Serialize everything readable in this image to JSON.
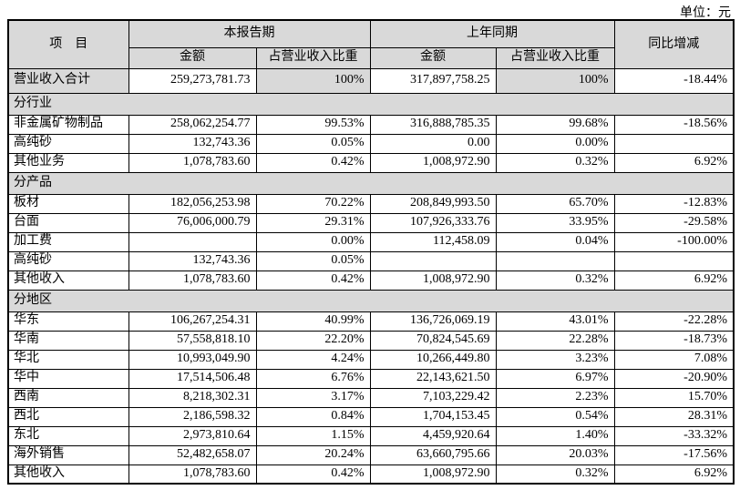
{
  "unit_label": "单位：元",
  "table": {
    "header": {
      "item": "项　目",
      "current_period": "本报告期",
      "prior_period": "上年同期",
      "amount": "金额",
      "pct": "占营业收入比重",
      "yoy": "同比增减"
    },
    "colors": {
      "shaded_cell": "#d9d9d9",
      "border": "#000000",
      "background": "#ffffff"
    },
    "rows": [
      {
        "type": "total",
        "label": "营业收入合计",
        "cur_amt": "259,273,781.73",
        "cur_pct": "100%",
        "pri_amt": "317,897,758.25",
        "pri_pct": "100%",
        "yoy": "-18.44%"
      },
      {
        "type": "section",
        "label": "分行业"
      },
      {
        "type": "data",
        "label": "非金属矿物制品",
        "cur_amt": "258,062,254.77",
        "cur_pct": "99.53%",
        "pri_amt": "316,888,785.35",
        "pri_pct": "99.68%",
        "yoy": "-18.56%"
      },
      {
        "type": "data",
        "label": "高纯砂",
        "cur_amt": "132,743.36",
        "cur_pct": "0.05%",
        "pri_amt": "0.00",
        "pri_pct": "0.00%",
        "yoy": ""
      },
      {
        "type": "data",
        "label": "其他业务",
        "cur_amt": "1,078,783.60",
        "cur_pct": "0.42%",
        "pri_amt": "1,008,972.90",
        "pri_pct": "0.32%",
        "yoy": "6.92%"
      },
      {
        "type": "section",
        "label": "分产品"
      },
      {
        "type": "data",
        "label": "板材",
        "cur_amt": "182,056,253.98",
        "cur_pct": "70.22%",
        "pri_amt": "208,849,993.50",
        "pri_pct": "65.70%",
        "yoy": "-12.83%"
      },
      {
        "type": "data",
        "label": "台面",
        "cur_amt": "76,006,000.79",
        "cur_pct": "29.31%",
        "pri_amt": "107,926,333.76",
        "pri_pct": "33.95%",
        "yoy": "-29.58%"
      },
      {
        "type": "data",
        "label": "加工费",
        "cur_amt": "",
        "cur_pct": "0.00%",
        "pri_amt": "112,458.09",
        "pri_pct": "0.04%",
        "yoy": "-100.00%"
      },
      {
        "type": "data",
        "label": "高纯砂",
        "cur_amt": "132,743.36",
        "cur_pct": "0.05%",
        "pri_amt": "",
        "pri_pct": "",
        "yoy": ""
      },
      {
        "type": "data",
        "label": "其他收入",
        "cur_amt": "1,078,783.60",
        "cur_pct": "0.42%",
        "pri_amt": "1,008,972.90",
        "pri_pct": "0.32%",
        "yoy": "6.92%"
      },
      {
        "type": "section",
        "label": "分地区"
      },
      {
        "type": "data",
        "label": "华东",
        "cur_amt": "106,267,254.31",
        "cur_pct": "40.99%",
        "pri_amt": "136,726,069.19",
        "pri_pct": "43.01%",
        "yoy": "-22.28%"
      },
      {
        "type": "data",
        "label": "华南",
        "cur_amt": "57,558,818.10",
        "cur_pct": "22.20%",
        "pri_amt": "70,824,545.69",
        "pri_pct": "22.28%",
        "yoy": "-18.73%"
      },
      {
        "type": "data",
        "label": "华北",
        "cur_amt": "10,993,049.90",
        "cur_pct": "4.24%",
        "pri_amt": "10,266,449.80",
        "pri_pct": "3.23%",
        "yoy": "7.08%"
      },
      {
        "type": "data",
        "label": "华中",
        "cur_amt": "17,514,506.48",
        "cur_pct": "6.76%",
        "pri_amt": "22,143,621.50",
        "pri_pct": "6.97%",
        "yoy": "-20.90%"
      },
      {
        "type": "data",
        "label": "西南",
        "cur_amt": "8,218,302.31",
        "cur_pct": "3.17%",
        "pri_amt": "7,103,229.42",
        "pri_pct": "2.23%",
        "yoy": "15.70%"
      },
      {
        "type": "data",
        "label": "西北",
        "cur_amt": "2,186,598.32",
        "cur_pct": "0.84%",
        "pri_amt": "1,704,153.45",
        "pri_pct": "0.54%",
        "yoy": "28.31%"
      },
      {
        "type": "data",
        "label": "东北",
        "cur_amt": "2,973,810.64",
        "cur_pct": "1.15%",
        "pri_amt": "4,459,920.64",
        "pri_pct": "1.40%",
        "yoy": "-33.32%"
      },
      {
        "type": "data",
        "label": "海外销售",
        "cur_amt": "52,482,658.07",
        "cur_pct": "20.24%",
        "pri_amt": "63,660,795.66",
        "pri_pct": "20.03%",
        "yoy": "-17.56%"
      },
      {
        "type": "data",
        "label": "其他收入",
        "cur_amt": "1,078,783.60",
        "cur_pct": "0.42%",
        "pri_amt": "1,008,972.90",
        "pri_pct": "0.32%",
        "yoy": "6.92%"
      }
    ]
  }
}
